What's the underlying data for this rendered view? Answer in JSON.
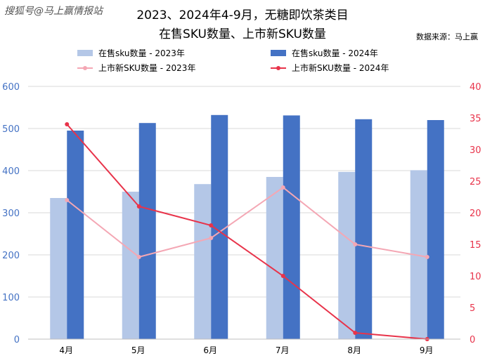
{
  "chart_data": {
    "type": "bar",
    "title_line1": "2023、2024年4-9月，无糖即饮茶类目",
    "title_line2": "在售SKU数量、上市新SKU数量",
    "source": "数据来源：马上赢",
    "watermark": "搜狐号@马上赢情报站",
    "categories": [
      "4月",
      "5月",
      "6月",
      "7月",
      "8月",
      "9月"
    ],
    "y_left": {
      "range": [
        0,
        600
      ],
      "ticks": [
        0,
        100,
        200,
        300,
        400,
        500,
        600
      ],
      "color": "#4472c4"
    },
    "y_right": {
      "range": [
        0,
        40
      ],
      "ticks": [
        0,
        5,
        10,
        15,
        20,
        25,
        30,
        35,
        40
      ],
      "color": "#e8334a"
    },
    "grid": true,
    "legend_position": "top",
    "series": [
      {
        "name": "在售sku数量 - 2023年",
        "kind": "bar",
        "axis": "left",
        "color": "#b4c7e7",
        "values": [
          335,
          350,
          368,
          385,
          397,
          401
        ]
      },
      {
        "name": "在售sku数量 - 2024年",
        "kind": "bar",
        "axis": "left",
        "color": "#4472c4",
        "values": [
          495,
          513,
          532,
          531,
          522,
          520
        ]
      },
      {
        "name": "上市新SKU数量 - 2023年",
        "kind": "line",
        "axis": "right",
        "color": "#f4a7b4",
        "values": [
          22,
          13,
          16,
          24,
          15,
          13
        ]
      },
      {
        "name": "上市新SKU数量 - 2024年",
        "kind": "line",
        "axis": "right",
        "color": "#e8334a",
        "values": [
          34,
          21,
          18,
          10,
          1,
          0
        ]
      }
    ]
  }
}
